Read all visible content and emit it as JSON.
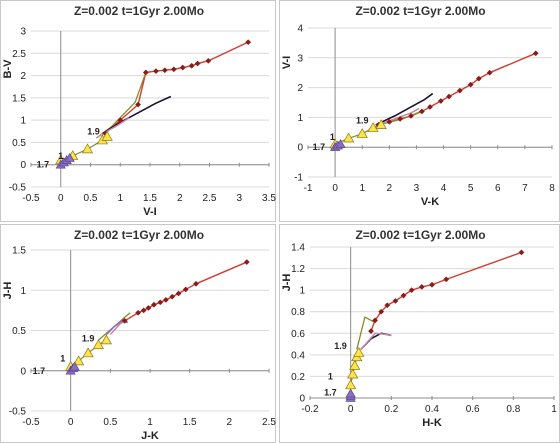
{
  "figure_title": "Z=0.002  t=1Gyr  2.00Mo",
  "colors": {
    "rgb_track": "#d23c2f",
    "rgb_marker": "#8b1a1a",
    "agb_track": "#8a8a2a",
    "marker_yellow": "#ffe34a",
    "marker_purple": "#8a6fc0",
    "dark_track": "#1a1030",
    "pink_track": "#c98aa8"
  },
  "chart_data": [
    {
      "type": "line",
      "title": "Z=0.002  t=1Gyr  2.00Mo",
      "xlabel": "V-I",
      "ylabel": "B-V",
      "xlim": [
        -0.5,
        3.5
      ],
      "ylim": [
        -0.5,
        3
      ],
      "xticks": [
        "-0.5",
        "0",
        "0.5",
        "1",
        "1.5",
        "2",
        "2.5",
        "3",
        "3.5"
      ],
      "yticks": [
        "-0.5",
        "0",
        "0.5",
        "1",
        "1.5",
        "2",
        "2.5",
        "3"
      ],
      "annotations": [
        {
          "text": "1",
          "x": 0.0,
          "y": 0.2
        },
        {
          "text": "1.7",
          "x": -0.3,
          "y": 0.0
        },
        {
          "text": "1.9",
          "x": 0.55,
          "y": 0.75
        }
      ],
      "series": [
        {
          "role": "rgb",
          "values": [
            [
              0.75,
              0.7
            ],
            [
              1.0,
              1.0
            ],
            [
              1.3,
              1.35
            ],
            [
              1.43,
              2.07
            ],
            [
              1.6,
              2.1
            ],
            [
              1.75,
              2.12
            ],
            [
              1.9,
              2.14
            ],
            [
              2.05,
              2.18
            ],
            [
              2.2,
              2.22
            ],
            [
              2.3,
              2.27
            ],
            [
              2.48,
              2.33
            ],
            [
              3.15,
              2.75
            ]
          ]
        },
        {
          "role": "agb",
          "values": [
            [
              0.6,
              0.6
            ],
            [
              0.85,
              0.85
            ],
            [
              1.25,
              1.4
            ],
            [
              1.43,
              2.07
            ]
          ]
        },
        {
          "role": "dark",
          "values": [
            [
              0.7,
              0.7
            ],
            [
              1.0,
              0.95
            ],
            [
              1.35,
              1.2
            ],
            [
              1.6,
              1.38
            ],
            [
              1.85,
              1.53
            ]
          ]
        },
        {
          "role": "pink",
          "values": [
            [
              0.62,
              0.62
            ],
            [
              0.78,
              0.75
            ],
            [
              0.95,
              0.88
            ],
            [
              1.15,
              1.05
            ]
          ]
        },
        {
          "role": "yellow",
          "values": [
            [
              0.0,
              0.1
            ],
            [
              0.2,
              0.2
            ],
            [
              0.45,
              0.35
            ],
            [
              0.7,
              0.55
            ],
            [
              0.78,
              0.63
            ]
          ]
        },
        {
          "role": "purple",
          "values": [
            [
              0.0,
              0.0
            ],
            [
              0.05,
              0.05
            ],
            [
              0.1,
              0.1
            ],
            [
              0.15,
              0.15
            ]
          ]
        }
      ]
    },
    {
      "type": "line",
      "title": "Z=0.002  t=1Gyr  2.00Mo",
      "xlabel": "V-K",
      "ylabel": "V-I",
      "xlim": [
        -1,
        8
      ],
      "ylim": [
        -1,
        4
      ],
      "xticks": [
        "-1",
        "0",
        "1",
        "2",
        "3",
        "4",
        "5",
        "6",
        "7",
        "8"
      ],
      "yticks": [
        "-1",
        "0",
        "1",
        "2",
        "3",
        "4"
      ],
      "annotations": [
        {
          "text": "1",
          "x": -0.1,
          "y": 0.35
        },
        {
          "text": "1.7",
          "x": -0.6,
          "y": 0.0
        },
        {
          "text": "1.9",
          "x": 1.0,
          "y": 0.9
        }
      ],
      "series": [
        {
          "role": "rgb",
          "values": [
            [
              1.6,
              0.75
            ],
            [
              2.0,
              0.85
            ],
            [
              2.4,
              0.95
            ],
            [
              2.8,
              1.05
            ],
            [
              3.2,
              1.2
            ],
            [
              3.5,
              1.35
            ],
            [
              3.9,
              1.55
            ],
            [
              4.2,
              1.7
            ],
            [
              4.6,
              1.9
            ],
            [
              5.0,
              2.1
            ],
            [
              5.3,
              2.3
            ],
            [
              5.7,
              2.5
            ],
            [
              7.4,
              3.15
            ]
          ]
        },
        {
          "role": "agb",
          "values": [
            [
              1.6,
              0.75
            ],
            [
              2.5,
              0.95
            ],
            [
              3.3,
              1.25
            ]
          ]
        },
        {
          "role": "dark",
          "values": [
            [
              1.5,
              0.75
            ],
            [
              2.2,
              1.05
            ],
            [
              2.8,
              1.35
            ],
            [
              3.3,
              1.6
            ],
            [
              3.6,
              1.8
            ]
          ]
        },
        {
          "role": "pink",
          "values": [
            [
              1.5,
              0.72
            ],
            [
              2.2,
              0.95
            ],
            [
              2.8,
              1.15
            ],
            [
              3.1,
              1.3
            ]
          ]
        },
        {
          "role": "yellow",
          "values": [
            [
              0.0,
              0.1
            ],
            [
              0.5,
              0.3
            ],
            [
              1.0,
              0.45
            ],
            [
              1.4,
              0.65
            ],
            [
              1.7,
              0.75
            ]
          ]
        },
        {
          "role": "purple",
          "values": [
            [
              0.0,
              0.0
            ],
            [
              0.1,
              0.05
            ],
            [
              0.2,
              0.1
            ]
          ]
        }
      ]
    },
    {
      "type": "line",
      "title": "Z=0.002  t=1Gyr  2.00Mo",
      "xlabel": "J-K",
      "ylabel": "J-H",
      "xlim": [
        -0.5,
        2.5
      ],
      "ylim": [
        -0.5,
        1.5
      ],
      "xticks": [
        "-0.5",
        "0",
        "0.5",
        "1",
        "1.5",
        "2",
        "2.5"
      ],
      "yticks": [
        "-0.5",
        "0",
        "0.5",
        "1",
        "1.5"
      ],
      "annotations": [
        {
          "text": "1",
          "x": -0.1,
          "y": 0.15
        },
        {
          "text": "1.7",
          "x": -0.4,
          "y": 0.0
        },
        {
          "text": "1.9",
          "x": 0.22,
          "y": 0.4
        }
      ],
      "series": [
        {
          "role": "rgb",
          "values": [
            [
              0.68,
              0.62
            ],
            [
              0.85,
              0.72
            ],
            [
              0.92,
              0.75
            ],
            [
              0.98,
              0.78
            ],
            [
              1.05,
              0.82
            ],
            [
              1.13,
              0.85
            ],
            [
              1.2,
              0.88
            ],
            [
              1.28,
              0.92
            ],
            [
              1.36,
              0.96
            ],
            [
              1.45,
              1.01
            ],
            [
              1.58,
              1.08
            ],
            [
              2.22,
              1.35
            ]
          ]
        },
        {
          "role": "agb",
          "values": [
            [
              0.35,
              0.38
            ],
            [
              0.55,
              0.55
            ],
            [
              0.7,
              0.68
            ],
            [
              0.75,
              0.72
            ]
          ]
        },
        {
          "role": "pink",
          "values": [
            [
              0.5,
              0.45
            ],
            [
              0.62,
              0.58
            ],
            [
              0.68,
              0.62
            ],
            [
              0.72,
              0.6
            ]
          ]
        },
        {
          "role": "purple_line",
          "values": [
            [
              0.45,
              0.45
            ],
            [
              0.55,
              0.55
            ],
            [
              0.65,
              0.62
            ],
            [
              0.72,
              0.6
            ]
          ]
        },
        {
          "role": "yellow",
          "values": [
            [
              0.0,
              0.05
            ],
            [
              0.1,
              0.12
            ],
            [
              0.22,
              0.22
            ],
            [
              0.35,
              0.32
            ],
            [
              0.45,
              0.38
            ]
          ]
        },
        {
          "role": "purple",
          "values": [
            [
              0.0,
              0.0
            ],
            [
              0.03,
              0.03
            ],
            [
              0.05,
              0.05
            ]
          ]
        }
      ]
    },
    {
      "type": "line",
      "title": "Z=0.002  t=1Gyr  2.00Mo",
      "xlabel": "H-K",
      "ylabel": "J-H",
      "xlim": [
        -0.2,
        1
      ],
      "ylim": [
        0,
        1.4
      ],
      "xticks": [
        "-0.2",
        "0",
        "0.2",
        "0.4",
        "0.6",
        "0.8",
        "1"
      ],
      "yticks": [
        "0",
        "0.2",
        "0.4",
        "0.6",
        "0.8",
        "1",
        "1.2",
        "1.4"
      ],
      "annotations": [
        {
          "text": "1",
          "x": -0.1,
          "y": 0.2
        },
        {
          "text": "1.7",
          "x": -0.1,
          "y": 0.05
        },
        {
          "text": "1.9",
          "x": -0.05,
          "y": 0.48
        }
      ],
      "series": [
        {
          "role": "rgb",
          "values": [
            [
              0.1,
              0.62
            ],
            [
              0.12,
              0.72
            ],
            [
              0.15,
              0.8
            ],
            [
              0.18,
              0.86
            ],
            [
              0.22,
              0.9
            ],
            [
              0.26,
              0.95
            ],
            [
              0.3,
              1.0
            ],
            [
              0.35,
              1.03
            ],
            [
              0.4,
              1.05
            ],
            [
              0.47,
              1.1
            ],
            [
              0.84,
              1.35
            ]
          ]
        },
        {
          "role": "agb",
          "values": [
            [
              0.03,
              0.45
            ],
            [
              0.07,
              0.75
            ],
            [
              0.1,
              0.72
            ],
            [
              0.12,
              0.7
            ]
          ]
        },
        {
          "role": "dark",
          "values": [
            [
              0.05,
              0.45
            ],
            [
              0.1,
              0.55
            ],
            [
              0.15,
              0.6
            ],
            [
              0.2,
              0.58
            ]
          ]
        },
        {
          "role": "pink",
          "values": [
            [
              0.05,
              0.45
            ],
            [
              0.12,
              0.6
            ],
            [
              0.17,
              0.59
            ],
            [
              0.2,
              0.58
            ]
          ]
        },
        {
          "role": "yellow",
          "values": [
            [
              0.0,
              0.12
            ],
            [
              0.01,
              0.22
            ],
            [
              0.02,
              0.3
            ],
            [
              0.03,
              0.38
            ],
            [
              0.04,
              0.42
            ]
          ]
        },
        {
          "role": "purple",
          "values": [
            [
              0.0,
              0.0
            ],
            [
              0.0,
              0.02
            ],
            [
              0.0,
              0.04
            ]
          ]
        }
      ]
    }
  ]
}
